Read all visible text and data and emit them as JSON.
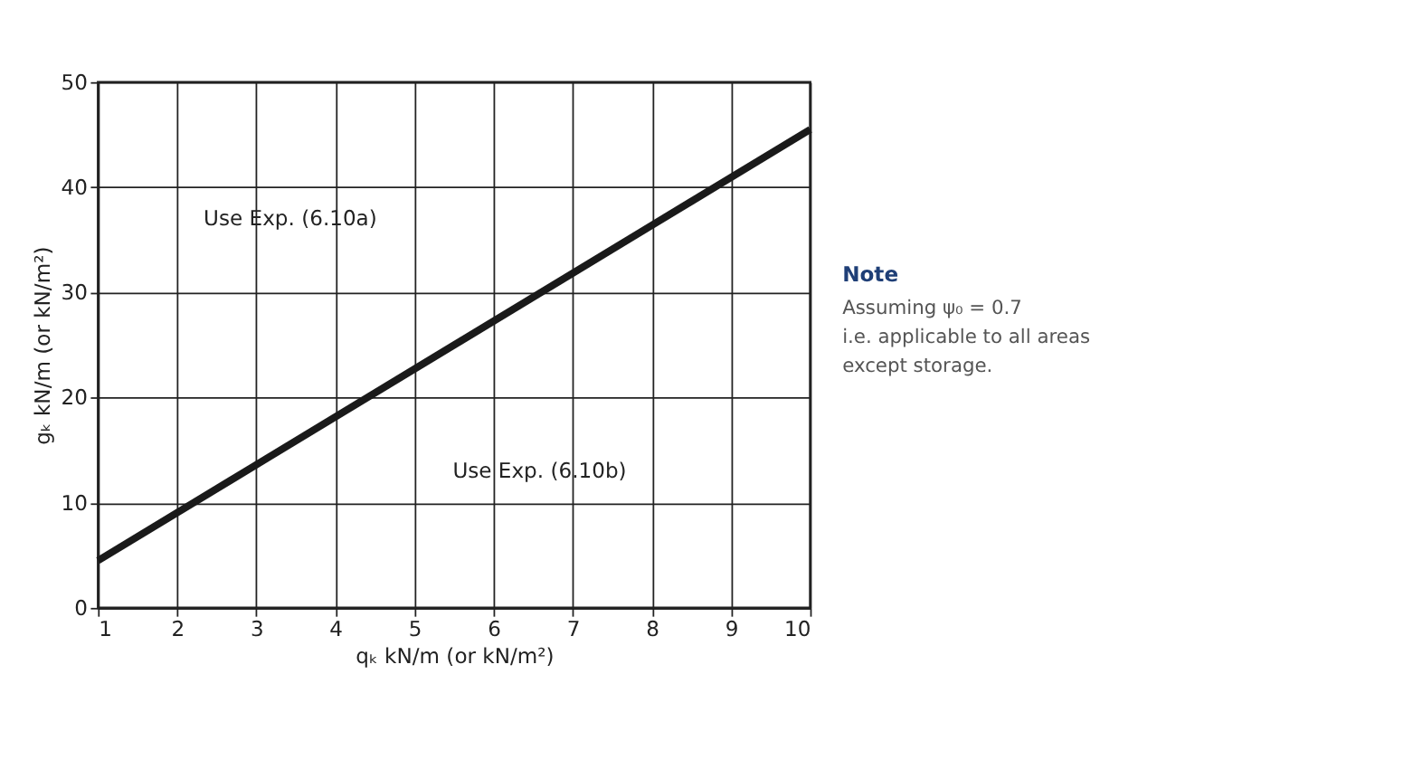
{
  "chart_data": {
    "type": "line",
    "xlabel": "qₖ kN/m (or kN/m²)",
    "ylabel": "gₖ kN/m (or kN/m²)",
    "x": [
      1,
      10
    ],
    "series": [
      {
        "color": "#1a1a1a",
        "values": [
          4.5,
          45.5
        ]
      }
    ],
    "xlim": [
      1,
      10
    ],
    "xticks": [
      1,
      2,
      3,
      4,
      5,
      6,
      7,
      8,
      9,
      10
    ],
    "ylim": [
      0,
      50
    ],
    "yticks": [
      0,
      10,
      20,
      30,
      40,
      50
    ],
    "grid": true,
    "marker": "none",
    "line_style": "solid",
    "annotations": [
      "Use Exp. (6.10a)",
      "Use Exp. (6.10b)",
      "Note",
      "Assuming ψ₀ = 0.7",
      "i.e. applicable to all areas",
      "except storage."
    ]
  }
}
